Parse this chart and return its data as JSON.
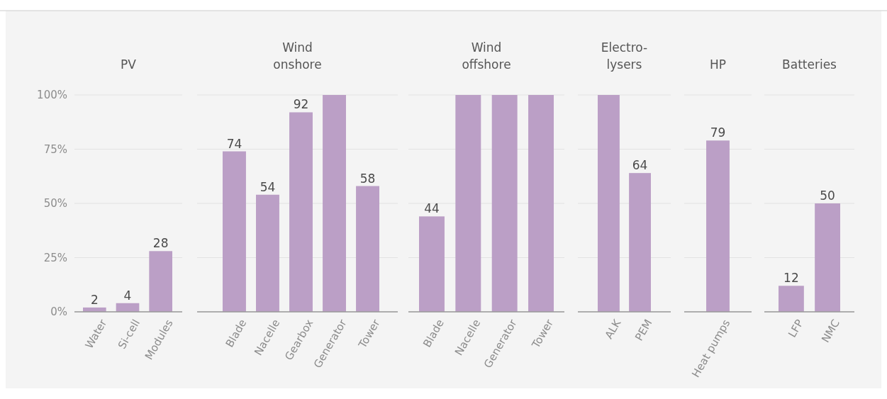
{
  "chart_data": [
    {
      "type": "bar",
      "title": "PV",
      "categories": [
        "Water",
        "Si-cell",
        "Modules"
      ],
      "values": [
        2,
        4,
        28
      ],
      "value_labels": [
        "2",
        "4",
        "28"
      ],
      "color": "#bb9fc6",
      "ylim": [
        0,
        100
      ],
      "yticks": [
        {
          "value": 0,
          "label": "0%"
        },
        {
          "value": 25,
          "label": "25%"
        },
        {
          "value": 50,
          "label": "50%"
        },
        {
          "value": 75,
          "label": "75%"
        },
        {
          "value": 100,
          "label": "100%"
        }
      ],
      "grid": "y"
    },
    {
      "type": "bar",
      "title": "Wind\nonshore",
      "categories": [
        "Blade",
        "Nacelle",
        "Gearbox",
        "Generator",
        "Tower"
      ],
      "values": [
        74,
        54,
        92,
        100,
        58
      ],
      "value_labels": [
        "74",
        "54",
        "92",
        null,
        "58"
      ],
      "color": "#bb9fc6",
      "ylim": [
        0,
        100
      ],
      "yticks": [
        {
          "value": 0,
          "label": null
        },
        {
          "value": 25,
          "label": null
        },
        {
          "value": 50,
          "label": null
        },
        {
          "value": 75,
          "label": null
        },
        {
          "value": 100,
          "label": null
        }
      ],
      "grid": "y",
      "tick_labels": "x"
    },
    {
      "type": "bar",
      "title": "Wind\noffshore",
      "categories": [
        "Blade",
        "Nacelle",
        "Generator",
        "Tower"
      ],
      "values": [
        44,
        100,
        100,
        100
      ],
      "value_labels": [
        "44",
        null,
        null,
        null
      ],
      "color": "#bb9fc6",
      "ylim": [
        0,
        100
      ],
      "yticks": [
        {
          "value": 0,
          "label": null
        },
        {
          "value": 25,
          "label": null
        },
        {
          "value": 50,
          "label": null
        },
        {
          "value": 75,
          "label": null
        },
        {
          "value": 100,
          "label": null
        }
      ],
      "grid": "y",
      "tick_labels": "x"
    },
    {
      "type": "bar",
      "title": "Electro-\nlysers",
      "categories": [
        "ALK",
        "PEM"
      ],
      "values": [
        100,
        64
      ],
      "value_labels": [
        null,
        "64"
      ],
      "color": "#bb9fc6",
      "ylim": [
        0,
        100
      ],
      "yticks": [
        {
          "value": 0,
          "label": null
        },
        {
          "value": 25,
          "label": null
        },
        {
          "value": 50,
          "label": null
        },
        {
          "value": 75,
          "label": null
        },
        {
          "value": 100,
          "label": null
        }
      ],
      "grid": "y",
      "tick_labels": "x"
    },
    {
      "type": "bar",
      "title": "HP",
      "categories": [
        "Heat pumps"
      ],
      "values": [
        79
      ],
      "value_labels": [
        "79"
      ],
      "color": "#bb9fc6",
      "ylim": [
        0,
        100
      ],
      "yticks": [
        {
          "value": 0,
          "label": null
        },
        {
          "value": 25,
          "label": null
        },
        {
          "value": 50,
          "label": null
        },
        {
          "value": 75,
          "label": null
        },
        {
          "value": 100,
          "label": null
        }
      ],
      "grid": "y",
      "tick_labels": "x"
    },
    {
      "type": "bar",
      "title": "Batteries",
      "categories": [
        "LFP",
        "NMC"
      ],
      "values": [
        12,
        50
      ],
      "value_labels": [
        "12",
        "50"
      ],
      "color": "#bb9fc6",
      "ylim": [
        0,
        100
      ],
      "yticks": [
        {
          "value": 0,
          "label": null
        },
        {
          "value": 25,
          "label": null
        },
        {
          "value": 50,
          "label": null
        },
        {
          "value": 75,
          "label": null
        },
        {
          "value": 100,
          "label": null
        }
      ],
      "grid": "y",
      "tick_labels": "x"
    }
  ]
}
